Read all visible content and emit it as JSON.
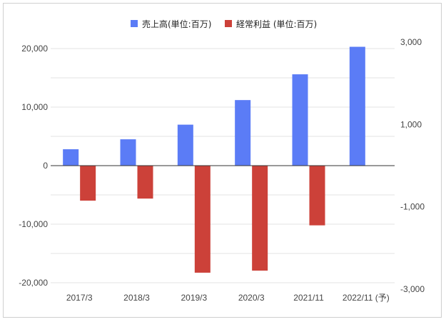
{
  "chart_data": {
    "type": "bar",
    "categories": [
      "2017/3",
      "2018/3",
      "2019/3",
      "2020/3",
      "2021/11",
      "2022/11 (予)"
    ],
    "series": [
      {
        "name": "売上高(単位:百万)",
        "axis": "left",
        "color": "#5b7cf6",
        "values": [
          2800,
          4500,
          7000,
          11200,
          15600,
          20300
        ]
      },
      {
        "name": "経常利益 (単位:百万)",
        "axis": "right",
        "color": "#cc4139",
        "values": [
          -850,
          -800,
          -2600,
          -2550,
          -1450,
          null
        ]
      }
    ],
    "y_left": {
      "ylim": [
        -20000,
        20000
      ],
      "tick_labels": [
        "20,000",
        "10,000",
        "0",
        "-10,000",
        "-20,000"
      ]
    },
    "y_right": {
      "ylim": [
        -3000,
        3000
      ],
      "tick_labels": [
        "3,000",
        "1,000",
        "-1,000",
        "-3,000"
      ]
    },
    "grid": true,
    "legend_position": "top-center"
  }
}
